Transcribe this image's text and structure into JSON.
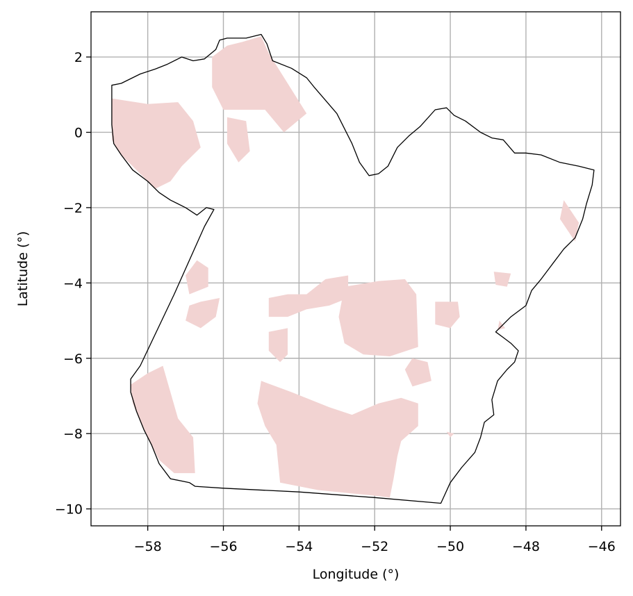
{
  "chart_data": {
    "type": "map",
    "title": "",
    "xlabel": "Longitude (°)",
    "ylabel": "Latitude (°)",
    "xlim": [
      -59.5,
      -45.5
    ],
    "ylim": [
      -10.45,
      3.2
    ],
    "xticks": [
      -58,
      -56,
      -54,
      -52,
      -50,
      -48,
      -46
    ],
    "yticks": [
      2,
      0,
      -2,
      -4,
      -6,
      -8,
      -10
    ],
    "xtick_labels": [
      "−58",
      "−56",
      "−54",
      "−52",
      "−50",
      "−48",
      "−46"
    ],
    "ytick_labels": [
      "2",
      "0",
      "−2",
      "−4",
      "−6",
      "−8",
      "−10"
    ],
    "grid": true,
    "colors": {
      "shaded": "#f2d3d2",
      "boundary": "#000000",
      "grid": "#b0b0b0"
    },
    "boundary": [
      [
        -58.95,
        1.25
      ],
      [
        -58.7,
        1.3
      ],
      [
        -58.2,
        1.55
      ],
      [
        -57.8,
        1.68
      ],
      [
        -57.5,
        1.8
      ],
      [
        -57.1,
        2.0
      ],
      [
        -56.8,
        1.9
      ],
      [
        -56.5,
        1.95
      ],
      [
        -56.2,
        2.2
      ],
      [
        -56.1,
        2.45
      ],
      [
        -55.9,
        2.5
      ],
      [
        -55.4,
        2.5
      ],
      [
        -55.0,
        2.6
      ],
      [
        -54.85,
        2.35
      ],
      [
        -54.7,
        1.9
      ],
      [
        -54.2,
        1.7
      ],
      [
        -53.8,
        1.45
      ],
      [
        -53.6,
        1.2
      ],
      [
        -53.3,
        0.85
      ],
      [
        -53.0,
        0.5
      ],
      [
        -52.8,
        0.1
      ],
      [
        -52.6,
        -0.3
      ],
      [
        -52.4,
        -0.8
      ],
      [
        -52.15,
        -1.15
      ],
      [
        -51.9,
        -1.1
      ],
      [
        -51.65,
        -0.9
      ],
      [
        -51.4,
        -0.4
      ],
      [
        -51.1,
        -0.1
      ],
      [
        -50.8,
        0.15
      ],
      [
        -50.4,
        0.6
      ],
      [
        -50.1,
        0.65
      ],
      [
        -49.9,
        0.45
      ],
      [
        -49.6,
        0.3
      ],
      [
        -49.2,
        0.0
      ],
      [
        -48.9,
        -0.15
      ],
      [
        -48.6,
        -0.2
      ],
      [
        -48.3,
        -0.55
      ],
      [
        -48.0,
        -0.55
      ],
      [
        -47.6,
        -0.6
      ],
      [
        -47.1,
        -0.8
      ],
      [
        -46.6,
        -0.9
      ],
      [
        -46.2,
        -1.0
      ],
      [
        -46.25,
        -1.4
      ],
      [
        -46.4,
        -1.9
      ],
      [
        -46.5,
        -2.3
      ],
      [
        -46.7,
        -2.8
      ],
      [
        -47.0,
        -3.1
      ],
      [
        -47.3,
        -3.5
      ],
      [
        -47.6,
        -3.9
      ],
      [
        -47.85,
        -4.2
      ],
      [
        -48.0,
        -4.6
      ],
      [
        -48.4,
        -4.9
      ],
      [
        -48.8,
        -5.3
      ],
      [
        -48.6,
        -5.45
      ],
      [
        -48.4,
        -5.6
      ],
      [
        -48.2,
        -5.8
      ],
      [
        -48.3,
        -6.1
      ],
      [
        -48.5,
        -6.3
      ],
      [
        -48.75,
        -6.6
      ],
      [
        -48.9,
        -7.1
      ],
      [
        -48.85,
        -7.5
      ],
      [
        -49.1,
        -7.7
      ],
      [
        -49.2,
        -8.1
      ],
      [
        -49.35,
        -8.5
      ],
      [
        -49.7,
        -8.9
      ],
      [
        -50.0,
        -9.3
      ],
      [
        -50.25,
        -9.85
      ],
      [
        -52.0,
        -9.7
      ],
      [
        -54.0,
        -9.55
      ],
      [
        -56.0,
        -9.45
      ],
      [
        -56.75,
        -9.4
      ],
      [
        -56.9,
        -9.3
      ],
      [
        -57.4,
        -9.2
      ],
      [
        -57.7,
        -8.8
      ],
      [
        -57.9,
        -8.3
      ],
      [
        -58.1,
        -7.9
      ],
      [
        -58.3,
        -7.4
      ],
      [
        -58.45,
        -6.9
      ],
      [
        -58.45,
        -6.55
      ],
      [
        -58.2,
        -6.2
      ],
      [
        -57.3,
        -4.3
      ],
      [
        -56.5,
        -2.5
      ],
      [
        -56.25,
        -2.05
      ],
      [
        -56.45,
        -2.0
      ],
      [
        -56.7,
        -2.2
      ],
      [
        -57.0,
        -2.0
      ],
      [
        -57.4,
        -1.8
      ],
      [
        -57.7,
        -1.6
      ],
      [
        -58.0,
        -1.3
      ],
      [
        -58.4,
        -1.0
      ],
      [
        -58.7,
        -0.6
      ],
      [
        -58.9,
        -0.3
      ],
      [
        -58.95,
        0.2
      ],
      [
        -58.95,
        1.25
      ]
    ],
    "shaded_regions": [
      [
        [
          -58.95,
          0.9
        ],
        [
          -58.0,
          0.75
        ],
        [
          -57.2,
          0.8
        ],
        [
          -56.8,
          0.3
        ],
        [
          -56.6,
          -0.4
        ],
        [
          -57.1,
          -0.9
        ],
        [
          -57.4,
          -1.3
        ],
        [
          -57.8,
          -1.5
        ],
        [
          -58.3,
          -1.0
        ],
        [
          -58.7,
          -0.6
        ],
        [
          -58.95,
          -0.2
        ]
      ],
      [
        [
          -56.3,
          2.0
        ],
        [
          -55.9,
          2.3
        ],
        [
          -55.5,
          2.4
        ],
        [
          -55.0,
          2.55
        ],
        [
          -54.8,
          2.1
        ],
        [
          -54.3,
          1.3
        ],
        [
          -53.8,
          0.5
        ],
        [
          -54.4,
          0.0
        ],
        [
          -54.9,
          0.6
        ],
        [
          -55.4,
          0.6
        ],
        [
          -56.0,
          0.6
        ],
        [
          -56.3,
          1.2
        ]
      ],
      [
        [
          -55.9,
          0.4
        ],
        [
          -55.4,
          0.3
        ],
        [
          -55.3,
          -0.5
        ],
        [
          -55.6,
          -0.8
        ],
        [
          -55.9,
          -0.3
        ]
      ],
      [
        [
          -56.7,
          -3.4
        ],
        [
          -56.4,
          -3.6
        ],
        [
          -56.4,
          -4.1
        ],
        [
          -56.9,
          -4.3
        ],
        [
          -57.0,
          -3.8
        ]
      ],
      [
        [
          -56.6,
          -4.5
        ],
        [
          -56.1,
          -4.4
        ],
        [
          -56.2,
          -4.9
        ],
        [
          -56.6,
          -5.2
        ],
        [
          -57.0,
          -5.0
        ],
        [
          -56.9,
          -4.6
        ]
      ],
      [
        [
          -54.8,
          -4.4
        ],
        [
          -54.3,
          -4.3
        ],
        [
          -53.8,
          -4.3
        ],
        [
          -53.3,
          -3.9
        ],
        [
          -52.7,
          -3.8
        ],
        [
          -52.7,
          -4.4
        ],
        [
          -53.2,
          -4.6
        ],
        [
          -53.8,
          -4.7
        ],
        [
          -54.3,
          -4.9
        ],
        [
          -54.8,
          -4.9
        ]
      ],
      [
        [
          -52.8,
          -4.1
        ],
        [
          -51.9,
          -3.95
        ],
        [
          -51.2,
          -3.9
        ],
        [
          -50.9,
          -4.3
        ],
        [
          -50.85,
          -5.7
        ],
        [
          -51.6,
          -5.95
        ],
        [
          -52.3,
          -5.9
        ],
        [
          -52.8,
          -5.6
        ],
        [
          -52.95,
          -4.9
        ]
      ],
      [
        [
          -50.4,
          -4.5
        ],
        [
          -49.8,
          -4.5
        ],
        [
          -49.75,
          -4.9
        ],
        [
          -50.0,
          -5.2
        ],
        [
          -50.4,
          -5.1
        ]
      ],
      [
        [
          -48.85,
          -3.7
        ],
        [
          -48.4,
          -3.75
        ],
        [
          -48.5,
          -4.1
        ],
        [
          -48.8,
          -4.05
        ]
      ],
      [
        [
          -48.7,
          -5.0
        ],
        [
          -48.55,
          -5.2
        ],
        [
          -48.75,
          -5.25
        ]
      ],
      [
        [
          -47.0,
          -1.8
        ],
        [
          -46.6,
          -2.4
        ],
        [
          -46.7,
          -2.9
        ],
        [
          -47.1,
          -2.3
        ]
      ],
      [
        [
          -54.8,
          -5.3
        ],
        [
          -54.3,
          -5.2
        ],
        [
          -54.3,
          -5.9
        ],
        [
          -54.5,
          -6.1
        ],
        [
          -54.8,
          -5.8
        ]
      ],
      [
        [
          -51.0,
          -6.0
        ],
        [
          -50.6,
          -6.1
        ],
        [
          -50.5,
          -6.6
        ],
        [
          -51.0,
          -6.75
        ],
        [
          -51.2,
          -6.3
        ]
      ],
      [
        [
          -55.0,
          -6.6
        ],
        [
          -54.2,
          -6.9
        ],
        [
          -53.2,
          -7.3
        ],
        [
          -52.6,
          -7.5
        ],
        [
          -51.9,
          -7.2
        ],
        [
          -51.3,
          -7.05
        ],
        [
          -50.85,
          -7.2
        ],
        [
          -50.85,
          -7.8
        ],
        [
          -51.3,
          -8.2
        ],
        [
          -51.4,
          -8.6
        ],
        [
          -51.5,
          -9.2
        ],
        [
          -51.6,
          -9.7
        ],
        [
          -52.0,
          -9.65
        ],
        [
          -53.5,
          -9.5
        ],
        [
          -54.5,
          -9.3
        ],
        [
          -54.6,
          -8.3
        ],
        [
          -54.9,
          -7.8
        ],
        [
          -55.1,
          -7.2
        ]
      ],
      [
        [
          -58.45,
          -6.7
        ],
        [
          -58.0,
          -6.4
        ],
        [
          -57.6,
          -6.2
        ],
        [
          -57.4,
          -6.9
        ],
        [
          -57.2,
          -7.6
        ],
        [
          -56.8,
          -8.1
        ],
        [
          -56.75,
          -9.05
        ],
        [
          -57.3,
          -9.05
        ],
        [
          -57.7,
          -8.7
        ],
        [
          -58.1,
          -7.9
        ],
        [
          -58.4,
          -7.2
        ]
      ],
      [
        [
          -50.1,
          -7.95
        ],
        [
          -49.9,
          -8.0
        ],
        [
          -50.0,
          -8.1
        ]
      ]
    ]
  }
}
